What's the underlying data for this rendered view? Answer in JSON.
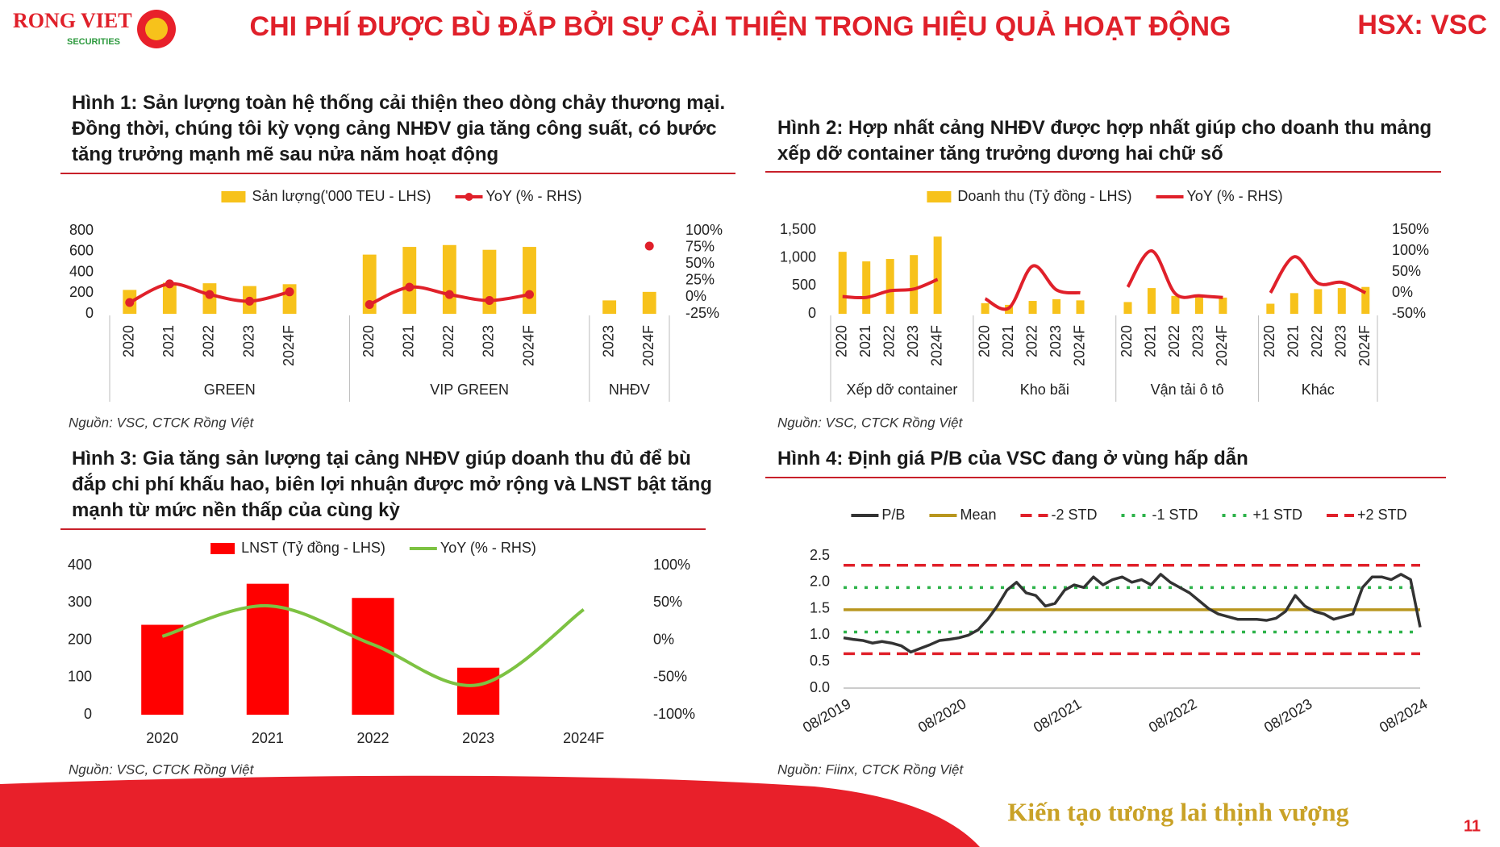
{
  "header": {
    "logo": "RONG VIET",
    "logo_sub": "SECURITIES",
    "title": "CHI PHÍ ĐƯỢC BÙ ĐẮP BỞI SỰ CẢI THIỆN TRONG HIỆU QUẢ HOẠT ĐỘNG",
    "ticker": "HSX: VSC"
  },
  "footer": {
    "slogan": "Kiến tạo tương lai thịnh vượng",
    "page": "11"
  },
  "chart_data": [
    {
      "type": "grouped_bar_line",
      "title": "Hình 1: Sản lượng toàn hệ thống cải thiện theo dòng chảy thương mại. Đồng thời, chúng tôi kỳ vọng cảng NHĐV gia tăng công suất, có bước tăng trưởng mạnh mẽ sau nửa năm hoạt động",
      "source": "Nguồn: VSC, CTCK Rồng Việt",
      "series": [
        {
          "name": "Sản lượng('000 TEU - LHS)",
          "color": "#f7c21b",
          "type": "bar"
        },
        {
          "name": "YoY (% - RHS)",
          "color": "#e0202a",
          "type": "line",
          "axis": "y2",
          "markers": true
        }
      ],
      "groups": [
        {
          "name": "GREEN",
          "categories": [
            "2020",
            "2021",
            "2022",
            "2023",
            "2024F"
          ],
          "values": [
            230,
            300,
            294,
            267,
            285
          ],
          "y2_values": [
            -8,
            20,
            4,
            -6,
            8
          ]
        },
        {
          "name": "VIP GREEN",
          "categories": [
            "2020",
            "2021",
            "2022",
            "2023",
            "2024F"
          ],
          "values": [
            570,
            644,
            662,
            616,
            644
          ],
          "y2_values": [
            -11,
            15,
            4,
            -5,
            4
          ]
        },
        {
          "name": "NHĐV",
          "categories": [
            "2023",
            "2024F"
          ],
          "values": [
            129,
            211
          ],
          "y2_values": [
            null,
            77
          ]
        }
      ],
      "ylim": [
        0,
        800
      ],
      "yticks": [
        0,
        200,
        400,
        600,
        800
      ],
      "y2lim": [
        -25,
        100
      ],
      "y2ticks": [
        {
          "value": -25,
          "label": "-25%"
        },
        {
          "value": 0,
          "label": "0%"
        },
        {
          "value": 25,
          "label": "25%"
        },
        {
          "value": 50,
          "label": "50%"
        },
        {
          "value": 75,
          "label": "75%"
        },
        {
          "value": 100,
          "label": "100%"
        }
      ],
      "smooth": true
    },
    {
      "type": "grouped_bar_line",
      "title": "Hình 2: Hợp nhất cảng NHĐV được hợp nhất giúp cho doanh thu mảng xếp dỡ container tăng trưởng dương hai chữ số",
      "source": "Nguồn: VSC, CTCK Rồng Việt",
      "series": [
        {
          "name": "Doanh thu (Tỷ đồng - LHS)",
          "color": "#f7c21b",
          "type": "bar"
        },
        {
          "name": "YoY (% - RHS)",
          "color": "#e0202a",
          "type": "line",
          "axis": "y2",
          "markers": false
        }
      ],
      "groups": [
        {
          "name": "Xếp dỡ container",
          "categories": [
            "2020",
            "2021",
            "2022",
            "2023",
            "2024F"
          ],
          "values": [
            1108,
            937,
            980,
            1050,
            1380
          ],
          "y2_values": [
            -9,
            -11,
            5,
            9,
            32
          ]
        },
        {
          "name": "Kho bãi",
          "categories": [
            "2020",
            "2021",
            "2022",
            "2023",
            "2024F"
          ],
          "values": [
            190,
            160,
            230,
            260,
            240
          ],
          "y2_values": [
            -14,
            -36,
            64,
            7,
            0
          ]
        },
        {
          "name": "Vận tải ô tô",
          "categories": [
            "2020",
            "2021",
            "2022",
            "2023",
            "2024F"
          ],
          "values": [
            210,
            460,
            320,
            300,
            290
          ],
          "y2_values": [
            14,
            100,
            -2,
            -7,
            -11
          ]
        },
        {
          "name": "Khác",
          "categories": [
            "2020",
            "2021",
            "2022",
            "2023",
            "2024F"
          ],
          "values": [
            180,
            370,
            440,
            460,
            480
          ],
          "y2_values": [
            0,
            86,
            23,
            25,
            0
          ]
        }
      ],
      "ylim": [
        0,
        1500
      ],
      "yticks": [
        0,
        500,
        {
          "value": 1000,
          "label": "1,000"
        },
        {
          "value": 1500,
          "label": "1,500"
        }
      ],
      "y2lim": [
        -50,
        150
      ],
      "y2ticks": [
        {
          "value": -50,
          "label": "-50%"
        },
        {
          "value": 0,
          "label": "0%"
        },
        {
          "value": 50,
          "label": "50%"
        },
        {
          "value": 100,
          "label": "100%"
        },
        {
          "value": 150,
          "label": "150%"
        }
      ],
      "smooth": true
    },
    {
      "type": "bar_line",
      "title": "Hình 3: Gia tăng sản lượng tại cảng NHĐV giúp doanh thu đủ để bù đắp chi phí khấu hao, biên lợi nhuận được mở rộng và LNST bật tăng mạnh từ mức nền thấp của cùng kỳ",
      "source": "Nguồn: VSC, CTCK Rồng Việt",
      "categories": [
        "2020",
        "2021",
        "2022",
        "2023",
        "2024F"
      ],
      "series": [
        {
          "name": "LNST (Tỷ đồng - LHS)",
          "color": "#ff0000",
          "type": "bar",
          "values": [
            241,
            351,
            313,
            126,
            null
          ]
        },
        {
          "name": "YoY (% - RHS)",
          "color": "#7dc242",
          "type": "line",
          "axis": "y2",
          "values": [
            5,
            46,
            -6,
            -60,
            41
          ]
        }
      ],
      "ylim": [
        0,
        400
      ],
      "yticks": [
        0,
        100,
        200,
        300,
        400
      ],
      "y2lim": [
        -100,
        100
      ],
      "y2ticks": [
        {
          "value": -100,
          "label": "-100%"
        },
        {
          "value": -50,
          "label": "-50%"
        },
        {
          "value": 0,
          "label": "0%"
        },
        {
          "value": 50,
          "label": "50%"
        },
        {
          "value": 100,
          "label": "100%"
        }
      ],
      "smooth": true
    },
    {
      "type": "line",
      "title": "Hình 4: Định giá P/B của VSC đang ở vùng hấp dẫn",
      "source": "Nguồn: Fiinx, CTCK Rồng Việt",
      "x": [
        "08/2019",
        "09/2019",
        "10/2019",
        "11/2019",
        "12/2019",
        "01/2020",
        "02/2020",
        "03/2020",
        "04/2020",
        "05/2020",
        "06/2020",
        "07/2020",
        "08/2020",
        "09/2020",
        "10/2020",
        "11/2020",
        "12/2020",
        "01/2021",
        "02/2021",
        "03/2021",
        "04/2021",
        "05/2021",
        "06/2021",
        "07/2021",
        "08/2021",
        "09/2021",
        "10/2021",
        "11/2021",
        "12/2021",
        "01/2022",
        "02/2022",
        "03/2022",
        "04/2022",
        "05/2022",
        "06/2022",
        "07/2022",
        "08/2022",
        "09/2022",
        "10/2022",
        "11/2022",
        "12/2022",
        "01/2023",
        "02/2023",
        "03/2023",
        "04/2023",
        "05/2023",
        "06/2023",
        "07/2023",
        "08/2023",
        "09/2023",
        "10/2023",
        "11/2023",
        "12/2023",
        "01/2024",
        "02/2024",
        "03/2024",
        "04/2024",
        "05/2024",
        "06/2024",
        "07/2024",
        "08/2024"
      ],
      "series": [
        {
          "name": "P/B",
          "color": "#333333",
          "values": [
            0.95,
            0.92,
            0.9,
            0.85,
            0.88,
            0.85,
            0.8,
            0.68,
            0.75,
            0.82,
            0.9,
            0.92,
            0.95,
            1.0,
            1.1,
            1.3,
            1.55,
            1.85,
            2.0,
            1.8,
            1.75,
            1.55,
            1.6,
            1.85,
            1.95,
            1.9,
            2.1,
            1.95,
            2.05,
            2.1,
            2.0,
            2.05,
            1.95,
            2.15,
            2.0,
            1.9,
            1.8,
            1.65,
            1.5,
            1.4,
            1.35,
            1.3,
            1.3,
            1.3,
            1.28,
            1.32,
            1.45,
            1.75,
            1.55,
            1.45,
            1.4,
            1.3,
            1.35,
            1.4,
            1.9,
            2.1,
            2.1,
            2.05,
            2.15,
            2.05,
            1.15
          ]
        }
      ],
      "reference_lines": [
        {
          "name": "Mean",
          "value": 1.48,
          "color": "#b8961e",
          "dash": "solid"
        },
        {
          "name": "-2 STD",
          "value": 0.65,
          "color": "#e0202a",
          "dash": "dashed"
        },
        {
          "name": "-1 STD",
          "value": 1.06,
          "color": "#2db34a",
          "dash": "dotted"
        },
        {
          "name": "+1 STD",
          "value": 1.9,
          "color": "#2db34a",
          "dash": "dotted"
        },
        {
          "name": "+2 STD",
          "value": 2.32,
          "color": "#e0202a",
          "dash": "dashed"
        }
      ],
      "xlim": [
        "08/2019",
        "08/2024"
      ],
      "xticks": [
        "08/2019",
        "08/2020",
        "08/2021",
        "08/2022",
        "08/2023",
        "08/2024"
      ],
      "ylim": [
        0,
        2.5
      ],
      "yticks": [
        {
          "value": 0,
          "label": "0.0"
        },
        0.5,
        {
          "value": 1,
          "label": "1.0"
        },
        1.5,
        {
          "value": 2,
          "label": "2.0"
        },
        2.5
      ]
    }
  ]
}
